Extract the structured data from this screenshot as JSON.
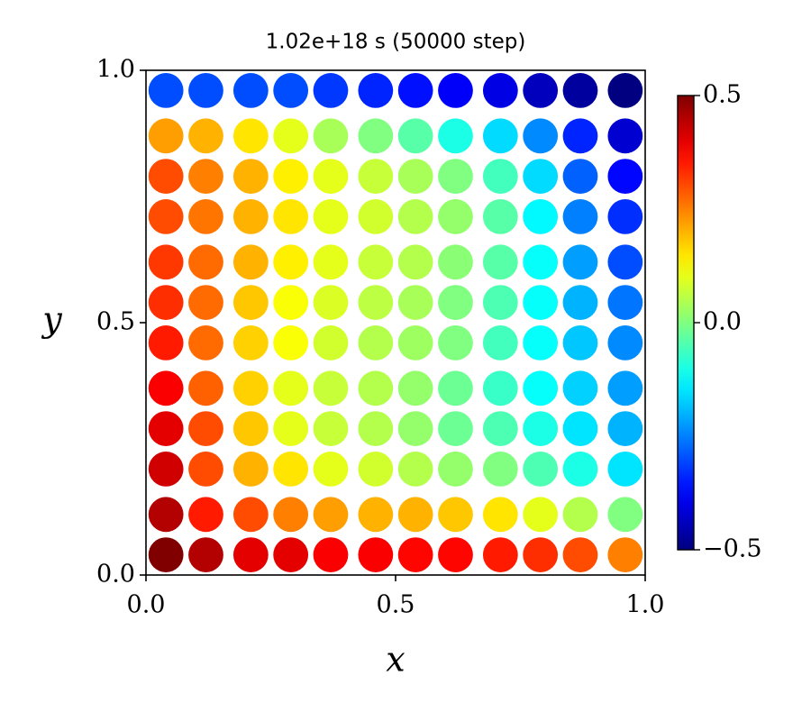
{
  "chart_data": {
    "type": "scatter",
    "title": "1.02e+18 s  (50000 step)",
    "x_label": "x",
    "y_label": "y",
    "colormap": "jet",
    "x": [
      0.04,
      0.12,
      0.21,
      0.29,
      0.37,
      0.46,
      0.54,
      0.62,
      0.71,
      0.79,
      0.87,
      0.96
    ],
    "y": [
      0.04,
      0.12,
      0.21,
      0.29,
      0.37,
      0.46,
      0.54,
      0.62,
      0.71,
      0.79,
      0.87,
      0.96
    ],
    "values": [
      [
        0.5,
        0.45,
        0.4,
        0.4,
        0.38,
        0.38,
        0.37,
        0.37,
        0.35,
        0.33,
        0.3,
        0.25
      ],
      [
        0.45,
        0.35,
        0.3,
        0.25,
        0.22,
        0.2,
        0.2,
        0.18,
        0.15,
        0.1,
        0.05,
        0.0
      ],
      [
        0.42,
        0.3,
        0.2,
        0.15,
        0.1,
        0.08,
        0.05,
        0.02,
        0.0,
        -0.05,
        -0.1,
        -0.15
      ],
      [
        0.4,
        0.3,
        0.18,
        0.1,
        0.07,
        0.05,
        0.02,
        -0.02,
        -0.05,
        -0.1,
        -0.15,
        -0.2
      ],
      [
        0.38,
        0.28,
        0.17,
        0.1,
        0.07,
        0.05,
        0.02,
        -0.02,
        -0.07,
        -0.12,
        -0.17,
        -0.22
      ],
      [
        0.35,
        0.27,
        0.17,
        0.12,
        0.08,
        0.05,
        0.03,
        0.0,
        -0.06,
        -0.12,
        -0.18,
        -0.24
      ],
      [
        0.33,
        0.27,
        0.18,
        0.12,
        0.09,
        0.06,
        0.04,
        0.0,
        -0.05,
        -0.12,
        -0.2,
        -0.26
      ],
      [
        0.32,
        0.27,
        0.2,
        0.14,
        0.1,
        0.07,
        0.05,
        0.01,
        -0.04,
        -0.12,
        -0.22,
        -0.3
      ],
      [
        0.3,
        0.26,
        0.2,
        0.15,
        0.1,
        0.08,
        0.05,
        0.02,
        -0.04,
        -0.13,
        -0.25,
        -0.33
      ],
      [
        0.3,
        0.25,
        0.2,
        0.14,
        0.1,
        0.07,
        0.04,
        0.0,
        -0.06,
        -0.16,
        -0.28,
        -0.37
      ],
      [
        0.22,
        0.2,
        0.15,
        0.1,
        0.04,
        0.0,
        -0.04,
        -0.1,
        -0.16,
        -0.24,
        -0.34,
        -0.42
      ],
      [
        -0.3,
        -0.3,
        -0.3,
        -0.3,
        -0.32,
        -0.34,
        -0.36,
        -0.38,
        -0.4,
        -0.44,
        -0.47,
        -0.5
      ]
    ],
    "xlim": [
      0,
      1
    ],
    "ylim": [
      0,
      1
    ],
    "xticks": [
      {
        "value": 0,
        "label": "0.0"
      },
      {
        "value": 0.5,
        "label": "0.5"
      },
      {
        "value": 1,
        "label": "1.0"
      }
    ],
    "yticks": [
      {
        "value": 0,
        "label": "0.0"
      },
      {
        "value": 0.5,
        "label": "0.5"
      },
      {
        "value": 1,
        "label": "1.0"
      }
    ],
    "clim": [
      -0.5,
      0.5
    ],
    "cticks": [
      {
        "value": -0.5,
        "label": "−0.5"
      },
      {
        "value": 0,
        "label": "0.0"
      },
      {
        "value": 0.5,
        "label": "0.5"
      }
    ]
  }
}
